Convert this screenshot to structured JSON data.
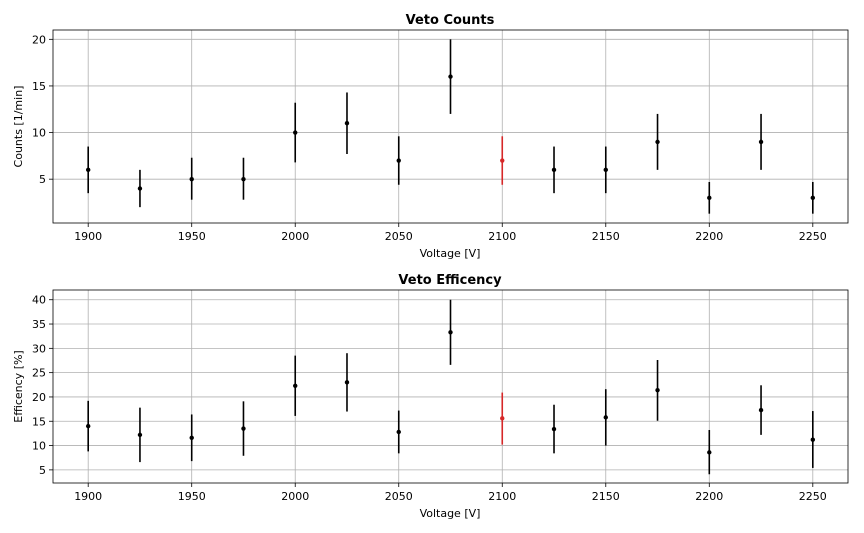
{
  "chart_data": [
    {
      "type": "scatter",
      "title": "Veto Counts",
      "xlabel": "Voltage [V]",
      "ylabel": "Counts [1/min]",
      "xlim": [
        1883,
        2267
      ],
      "ylim": [
        0.3,
        21
      ],
      "xticks": [
        1900,
        1950,
        2000,
        2050,
        2100,
        2150,
        2200,
        2250
      ],
      "yticks": [
        5,
        10,
        15,
        20
      ],
      "grid": true,
      "highlight_color": "#d62728",
      "point_color": "#000000",
      "points": [
        {
          "x": 1900,
          "y": 6,
          "err_lo": 3.5,
          "err_hi": 8.5,
          "highlight": false
        },
        {
          "x": 1925,
          "y": 4,
          "err_lo": 2.0,
          "err_hi": 6.0,
          "highlight": false
        },
        {
          "x": 1950,
          "y": 5,
          "err_lo": 2.8,
          "err_hi": 7.3,
          "highlight": false
        },
        {
          "x": 1975,
          "y": 5,
          "err_lo": 2.8,
          "err_hi": 7.3,
          "highlight": false
        },
        {
          "x": 2000,
          "y": 10,
          "err_lo": 6.8,
          "err_hi": 13.2,
          "highlight": false
        },
        {
          "x": 2025,
          "y": 11,
          "err_lo": 7.7,
          "err_hi": 14.3,
          "highlight": false
        },
        {
          "x": 2050,
          "y": 7,
          "err_lo": 4.4,
          "err_hi": 9.6,
          "highlight": false
        },
        {
          "x": 2075,
          "y": 16,
          "err_lo": 12.0,
          "err_hi": 20.0,
          "highlight": false
        },
        {
          "x": 2100,
          "y": 7,
          "err_lo": 4.4,
          "err_hi": 9.6,
          "highlight": true
        },
        {
          "x": 2125,
          "y": 6,
          "err_lo": 3.5,
          "err_hi": 8.5,
          "highlight": false
        },
        {
          "x": 2150,
          "y": 6,
          "err_lo": 3.5,
          "err_hi": 8.5,
          "highlight": false
        },
        {
          "x": 2175,
          "y": 9,
          "err_lo": 6.0,
          "err_hi": 12.0,
          "highlight": false
        },
        {
          "x": 2200,
          "y": 3,
          "err_lo": 1.3,
          "err_hi": 4.7,
          "highlight": false
        },
        {
          "x": 2225,
          "y": 9,
          "err_lo": 6.0,
          "err_hi": 12.0,
          "highlight": false
        },
        {
          "x": 2250,
          "y": 3,
          "err_lo": 1.3,
          "err_hi": 4.7,
          "highlight": false
        }
      ]
    },
    {
      "type": "scatter",
      "title": "Veto Efficency",
      "xlabel": "Voltage [V]",
      "ylabel": "Efficency [%]",
      "xlim": [
        1883,
        2267
      ],
      "ylim": [
        2.3,
        42
      ],
      "xticks": [
        1900,
        1950,
        2000,
        2050,
        2100,
        2150,
        2200,
        2250
      ],
      "yticks": [
        5,
        10,
        15,
        20,
        25,
        30,
        35,
        40
      ],
      "grid": true,
      "highlight_color": "#d62728",
      "point_color": "#000000",
      "points": [
        {
          "x": 1900,
          "y": 14.0,
          "err_lo": 8.8,
          "err_hi": 19.2,
          "highlight": false
        },
        {
          "x": 1925,
          "y": 12.2,
          "err_lo": 6.6,
          "err_hi": 17.8,
          "highlight": false
        },
        {
          "x": 1950,
          "y": 11.6,
          "err_lo": 6.8,
          "err_hi": 16.4,
          "highlight": false
        },
        {
          "x": 1975,
          "y": 13.5,
          "err_lo": 7.9,
          "err_hi": 19.1,
          "highlight": false
        },
        {
          "x": 2000,
          "y": 22.3,
          "err_lo": 16.1,
          "err_hi": 28.5,
          "highlight": false
        },
        {
          "x": 2025,
          "y": 23.0,
          "err_lo": 17.0,
          "err_hi": 29.0,
          "highlight": false
        },
        {
          "x": 2050,
          "y": 12.8,
          "err_lo": 8.4,
          "err_hi": 17.2,
          "highlight": false
        },
        {
          "x": 2075,
          "y": 33.3,
          "err_lo": 26.6,
          "err_hi": 40.0,
          "highlight": false
        },
        {
          "x": 2100,
          "y": 15.6,
          "err_lo": 10.2,
          "err_hi": 20.9,
          "highlight": true
        },
        {
          "x": 2125,
          "y": 13.4,
          "err_lo": 8.4,
          "err_hi": 18.4,
          "highlight": false
        },
        {
          "x": 2150,
          "y": 15.8,
          "err_lo": 10.0,
          "err_hi": 21.6,
          "highlight": false
        },
        {
          "x": 2175,
          "y": 21.4,
          "err_lo": 15.1,
          "err_hi": 27.6,
          "highlight": false
        },
        {
          "x": 2200,
          "y": 8.6,
          "err_lo": 4.1,
          "err_hi": 13.2,
          "highlight": false
        },
        {
          "x": 2225,
          "y": 17.3,
          "err_lo": 12.2,
          "err_hi": 22.4,
          "highlight": false
        },
        {
          "x": 2250,
          "y": 11.2,
          "err_lo": 5.4,
          "err_hi": 17.1,
          "highlight": false
        }
      ]
    }
  ]
}
